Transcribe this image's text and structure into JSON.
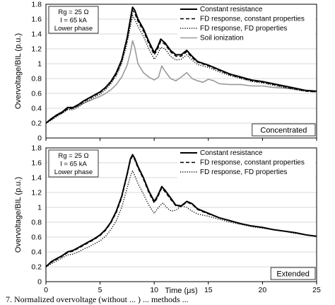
{
  "caption": "7. Normalized overvoltage (without ... ) ... methods ... ",
  "colors": {
    "constant": "#000000",
    "fd_const": "#000000",
    "fd_props": "#000000",
    "soil": "#9a9a9a",
    "grid": "#d9d9d9"
  },
  "chart_data": [
    {
      "type": "line",
      "panel_tag": "Concentrated",
      "info_box": [
        "Rg = 25 Ω",
        "I = 65 kA",
        "Lower phase"
      ],
      "ylabel": "Overvoltage/BIL (p.u.)",
      "xlabel": "",
      "xlim": [
        0,
        25
      ],
      "ylim": [
        0,
        1.8
      ],
      "xticks": [
        "0",
        "5",
        "10",
        "15",
        "20",
        "25"
      ],
      "yticks": [
        "0",
        "0.2",
        "0.4",
        "0.6",
        "0.8",
        "1",
        "1.2",
        "1.4",
        "1.6",
        "1.8"
      ],
      "grid": "horizontal",
      "legend_position": "top-right",
      "series": [
        {
          "name": "Constant resistance",
          "style": "solid",
          "x": [
            0,
            0.5,
            1,
            1.5,
            2,
            2.5,
            3,
            3.5,
            4,
            4.5,
            5,
            5.5,
            6,
            6.5,
            7,
            7.5,
            7.8,
            8,
            8.2,
            8.5,
            9,
            9.5,
            10,
            10.3,
            10.6,
            11,
            11.5,
            12,
            12.5,
            13,
            13.5,
            14,
            15,
            16,
            17,
            18,
            19,
            20,
            21,
            22,
            23,
            24,
            25
          ],
          "y": [
            0.2,
            0.26,
            0.31,
            0.35,
            0.41,
            0.41,
            0.45,
            0.5,
            0.54,
            0.58,
            0.62,
            0.68,
            0.76,
            0.88,
            1.05,
            1.35,
            1.6,
            1.76,
            1.72,
            1.6,
            1.47,
            1.3,
            1.15,
            1.22,
            1.33,
            1.28,
            1.18,
            1.12,
            1.12,
            1.18,
            1.1,
            1.03,
            0.98,
            0.92,
            0.86,
            0.82,
            0.78,
            0.76,
            0.73,
            0.7,
            0.67,
            0.64,
            0.63
          ]
        },
        {
          "name": "FD response, constant properties",
          "style": "dashed",
          "x": [
            0,
            0.5,
            1,
            1.5,
            2,
            2.5,
            3,
            3.5,
            4,
            4.5,
            5,
            5.5,
            6,
            6.5,
            7,
            7.5,
            7.8,
            8,
            8.2,
            8.5,
            9,
            9.5,
            10,
            10.3,
            10.6,
            11,
            11.5,
            12,
            12.5,
            13,
            13.5,
            14,
            15,
            16,
            17,
            18,
            19,
            20,
            21,
            22,
            23,
            24,
            25
          ],
          "y": [
            0.2,
            0.25,
            0.3,
            0.34,
            0.39,
            0.4,
            0.44,
            0.49,
            0.53,
            0.57,
            0.61,
            0.67,
            0.75,
            0.86,
            1.03,
            1.32,
            1.56,
            1.72,
            1.68,
            1.57,
            1.44,
            1.27,
            1.12,
            1.19,
            1.3,
            1.26,
            1.16,
            1.1,
            1.1,
            1.16,
            1.08,
            1.02,
            0.97,
            0.91,
            0.85,
            0.81,
            0.77,
            0.75,
            0.72,
            0.69,
            0.66,
            0.63,
            0.62
          ]
        },
        {
          "name": "FD response, FD properties",
          "style": "dotted",
          "x": [
            0,
            0.5,
            1,
            1.5,
            2,
            2.5,
            3,
            3.5,
            4,
            4.5,
            5,
            5.5,
            6,
            6.5,
            7,
            7.5,
            7.8,
            8,
            8.2,
            8.5,
            9,
            9.5,
            10,
            10.3,
            10.6,
            11,
            11.5,
            12,
            12.5,
            13,
            13.5,
            14,
            15,
            16,
            17,
            18,
            19,
            20,
            21,
            22,
            23,
            24,
            25
          ],
          "y": [
            0.2,
            0.24,
            0.29,
            0.33,
            0.38,
            0.38,
            0.42,
            0.47,
            0.51,
            0.55,
            0.59,
            0.65,
            0.73,
            0.84,
            1.0,
            1.28,
            1.5,
            1.65,
            1.6,
            1.5,
            1.37,
            1.2,
            1.06,
            1.12,
            1.22,
            1.2,
            1.1,
            1.05,
            1.06,
            1.12,
            1.05,
            0.99,
            0.95,
            0.89,
            0.84,
            0.8,
            0.76,
            0.74,
            0.71,
            0.68,
            0.65,
            0.63,
            0.62
          ]
        },
        {
          "name": "Soil ionization",
          "style": "solid-gray",
          "x": [
            0,
            0.5,
            1,
            1.5,
            2,
            2.5,
            3,
            3.5,
            4,
            4.5,
            5,
            5.5,
            6,
            6.5,
            7,
            7.5,
            7.8,
            8,
            8.2,
            8.5,
            9,
            9.5,
            10,
            10.4,
            10.7,
            11,
            11.5,
            12,
            12.5,
            13,
            13.5,
            14,
            14.5,
            15,
            15.5,
            16,
            17,
            18,
            19,
            20,
            21,
            22,
            23,
            24,
            25
          ],
          "y": [
            0.2,
            0.25,
            0.3,
            0.34,
            0.39,
            0.4,
            0.43,
            0.47,
            0.5,
            0.53,
            0.56,
            0.6,
            0.65,
            0.72,
            0.82,
            0.98,
            1.15,
            1.31,
            1.22,
            1.0,
            0.88,
            0.82,
            0.78,
            0.82,
            0.97,
            0.9,
            0.8,
            0.77,
            0.82,
            0.88,
            0.8,
            0.77,
            0.75,
            0.79,
            0.77,
            0.73,
            0.72,
            0.72,
            0.7,
            0.7,
            0.68,
            0.67,
            0.66,
            0.64,
            0.63
          ]
        }
      ]
    },
    {
      "type": "line",
      "panel_tag": "Extended",
      "info_box": [
        "Rg = 25 Ω",
        "I = 65 kA",
        "Lower phase"
      ],
      "ylabel": "Overvoltage/BIL (p.u.)",
      "xlabel": "Time (μs)",
      "xlim": [
        0,
        25
      ],
      "ylim": [
        0,
        1.8
      ],
      "xticks": [
        "0",
        "5",
        "10",
        "15",
        "20",
        "25"
      ],
      "yticks": [
        "0",
        "0.2",
        "0.4",
        "0.6",
        "0.8",
        "1",
        "1.2",
        "1.4",
        "1.6",
        "1.8"
      ],
      "grid": "horizontal",
      "legend_position": "top-right",
      "series": [
        {
          "name": "Constant resistance",
          "style": "solid",
          "x": [
            0,
            0.5,
            1,
            1.5,
            2,
            2.5,
            3,
            3.5,
            4,
            4.5,
            5,
            5.5,
            6,
            6.5,
            7,
            7.5,
            7.8,
            8,
            8.2,
            8.5,
            9,
            9.5,
            10,
            10.3,
            10.7,
            11,
            11.5,
            12,
            12.5,
            13,
            13.5,
            14,
            15,
            16,
            17,
            18,
            19,
            20,
            21,
            22,
            23,
            24,
            25
          ],
          "y": [
            0.2,
            0.27,
            0.31,
            0.35,
            0.4,
            0.42,
            0.46,
            0.5,
            0.54,
            0.58,
            0.63,
            0.7,
            0.8,
            0.95,
            1.15,
            1.45,
            1.65,
            1.71,
            1.66,
            1.55,
            1.4,
            1.22,
            1.08,
            1.15,
            1.28,
            1.23,
            1.13,
            1.03,
            1.02,
            1.08,
            1.05,
            0.98,
            0.92,
            0.86,
            0.82,
            0.78,
            0.75,
            0.73,
            0.7,
            0.68,
            0.66,
            0.63,
            0.61
          ]
        },
        {
          "name": "FD response, constant properties",
          "style": "dashed",
          "x": [
            0,
            0.5,
            1,
            1.5,
            2,
            2.5,
            3,
            3.5,
            4,
            4.5,
            5,
            5.5,
            6,
            6.5,
            7,
            7.5,
            7.8,
            8,
            8.2,
            8.5,
            9,
            9.5,
            10,
            10.3,
            10.7,
            11,
            11.5,
            12,
            12.5,
            13,
            13.5,
            14,
            15,
            16,
            17,
            18,
            19,
            20,
            21,
            22,
            23,
            24,
            25
          ],
          "y": [
            0.2,
            0.26,
            0.3,
            0.34,
            0.39,
            0.41,
            0.45,
            0.49,
            0.53,
            0.57,
            0.62,
            0.69,
            0.79,
            0.93,
            1.13,
            1.43,
            1.63,
            1.69,
            1.64,
            1.53,
            1.38,
            1.2,
            1.06,
            1.13,
            1.26,
            1.21,
            1.11,
            1.02,
            1.01,
            1.07,
            1.04,
            0.97,
            0.91,
            0.86,
            0.82,
            0.78,
            0.75,
            0.73,
            0.7,
            0.68,
            0.66,
            0.63,
            0.61
          ]
        },
        {
          "name": "FD response, FD properties",
          "style": "dotted",
          "x": [
            0,
            0.5,
            1,
            1.5,
            2,
            2.5,
            3,
            3.5,
            4,
            4.5,
            5,
            5.5,
            6,
            6.5,
            7,
            7.5,
            7.8,
            8,
            8.2,
            8.5,
            9,
            9.5,
            10,
            10.4,
            10.8,
            11.2,
            11.6,
            12,
            12.5,
            13,
            13.5,
            14,
            15,
            16,
            17,
            18,
            19,
            20,
            21,
            22,
            23,
            24,
            25
          ],
          "y": [
            0.2,
            0.24,
            0.28,
            0.32,
            0.36,
            0.37,
            0.4,
            0.44,
            0.47,
            0.51,
            0.55,
            0.61,
            0.7,
            0.82,
            1.0,
            1.26,
            1.42,
            1.49,
            1.43,
            1.32,
            1.18,
            1.03,
            0.92,
            1.0,
            1.06,
            0.99,
            0.95,
            0.96,
            1.02,
            1.0,
            0.95,
            0.91,
            0.88,
            0.84,
            0.8,
            0.77,
            0.74,
            0.72,
            0.7,
            0.68,
            0.65,
            0.63,
            0.61
          ]
        }
      ]
    }
  ]
}
